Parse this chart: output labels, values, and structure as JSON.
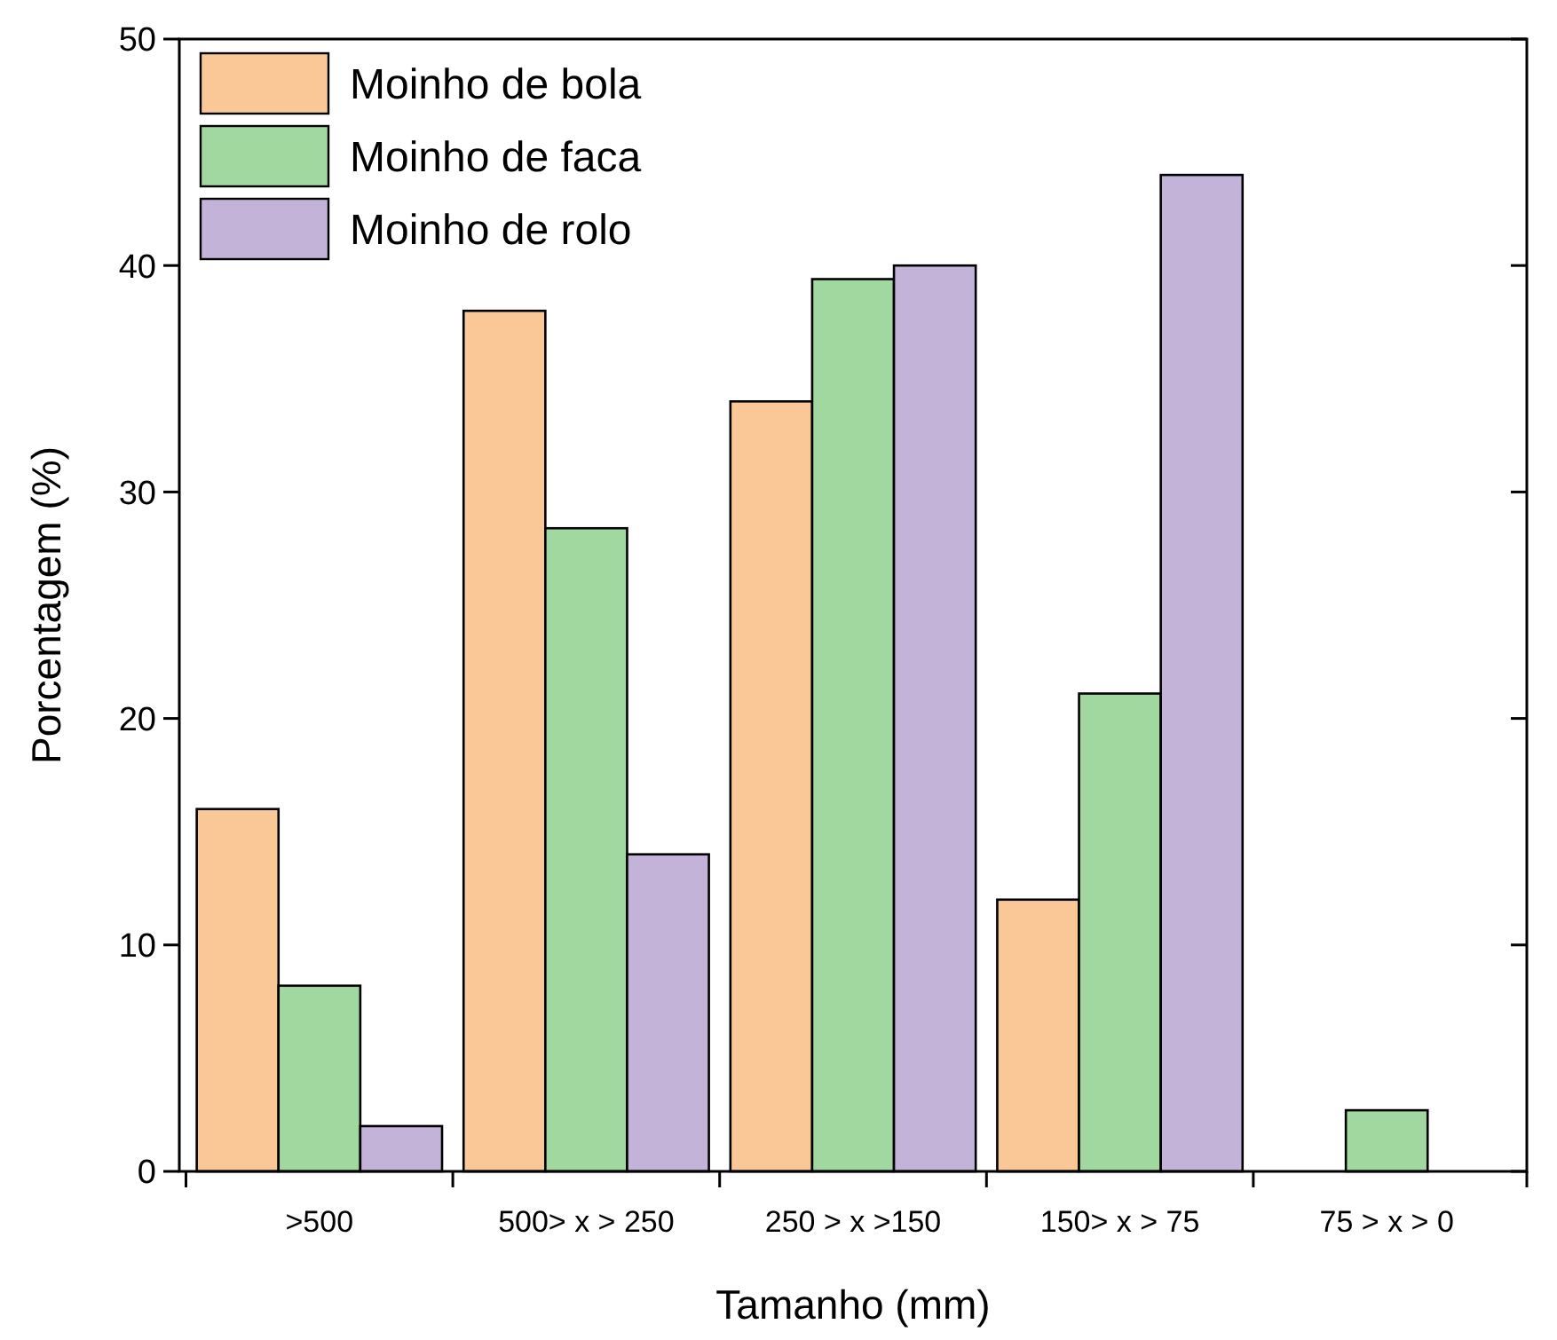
{
  "chart_data": {
    "type": "bar",
    "xlabel": "Tamanho (mm)",
    "ylabel": "Porcentagem (%)",
    "categories": [
      ">500",
      "500> x > 250",
      "250 > x >150",
      "150> x > 75",
      "75 > x > 0"
    ],
    "series": [
      {
        "name": "Moinho de bola",
        "color": "#f9c896",
        "values": [
          16,
          38,
          34,
          12,
          0
        ]
      },
      {
        "name": "Moinho de faca",
        "color": "#a0d89f",
        "values": [
          8.2,
          28.4,
          39.4,
          21.1,
          2.7
        ]
      },
      {
        "name": "Moinho de rolo",
        "color": "#c3b3d8",
        "values": [
          2,
          14,
          40,
          44,
          0
        ]
      }
    ],
    "ylim": [
      0,
      50
    ],
    "yticks": [
      0,
      10,
      20,
      30,
      40,
      50
    ],
    "grid": false,
    "legend": "top left"
  }
}
